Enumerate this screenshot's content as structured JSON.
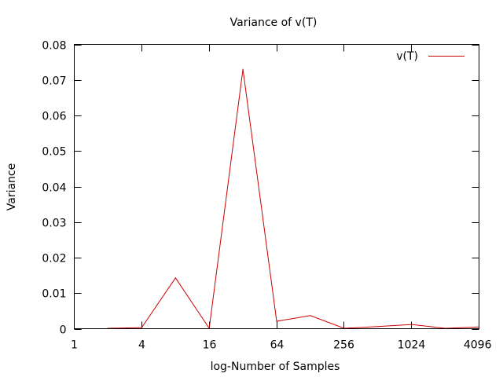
{
  "chart_data": {
    "type": "line",
    "title": "Variance of v(T)",
    "xlabel": "log-Number of Samples",
    "ylabel": "Variance",
    "x_scale": "log2",
    "xlim": [
      1,
      4096
    ],
    "ylim": [
      0,
      0.08
    ],
    "x_ticks": [
      1,
      4,
      16,
      64,
      256,
      1024,
      4096
    ],
    "x_tick_labels": [
      "1",
      "4",
      "16",
      "64",
      "256",
      "1024",
      "4096"
    ],
    "y_ticks": [
      0,
      0.01,
      0.02,
      0.03,
      0.04,
      0.05,
      0.06,
      0.07,
      0.08
    ],
    "y_tick_labels": [
      "0",
      "0.01",
      "0.02",
      "0.03",
      "0.04",
      "0.05",
      "0.06",
      "0.07",
      "0.08"
    ],
    "grid": false,
    "legend_position": "top-right",
    "series": [
      {
        "name": "v(T)",
        "color": "#cc0000",
        "x": [
          2,
          4,
          8,
          16,
          32,
          64,
          128,
          256,
          512,
          1024,
          2048,
          4096
        ],
        "y": [
          0.0001,
          0.0003,
          0.0143,
          0.0001,
          0.073,
          0.0021,
          0.0037,
          0.0001,
          0.0006,
          0.0012,
          0.0001,
          0.0005
        ]
      }
    ]
  }
}
